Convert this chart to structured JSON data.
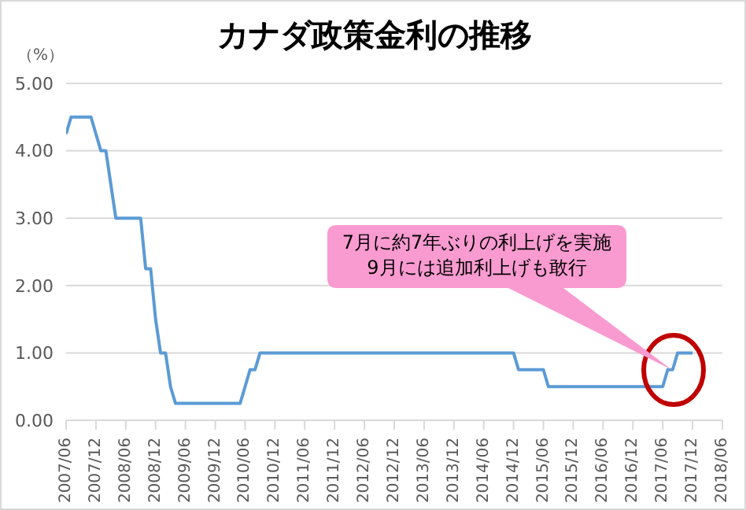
{
  "chart_data": {
    "type": "line",
    "title": "カナダ政策金利の推移",
    "ylabel": "（%）",
    "x": [
      "2007-06",
      "2007-07",
      "2007-08",
      "2007-09",
      "2007-10",
      "2007-11",
      "2007-12",
      "2008-01",
      "2008-02",
      "2008-03",
      "2008-04",
      "2008-05",
      "2008-06",
      "2008-07",
      "2008-08",
      "2008-09",
      "2008-10",
      "2008-11",
      "2008-12",
      "2009-01",
      "2009-02",
      "2009-03",
      "2009-04",
      "2009-05",
      "2009-06",
      "2009-07",
      "2009-08",
      "2009-09",
      "2009-10",
      "2009-11",
      "2009-12",
      "2010-01",
      "2010-02",
      "2010-03",
      "2010-04",
      "2010-05",
      "2010-06",
      "2010-07",
      "2010-08",
      "2010-09",
      "2010-10",
      "2010-11",
      "2010-12",
      "2011-01",
      "2011-02",
      "2011-03",
      "2011-04",
      "2011-05",
      "2011-06",
      "2011-07",
      "2011-08",
      "2011-09",
      "2011-10",
      "2011-11",
      "2011-12",
      "2012-01",
      "2012-02",
      "2012-03",
      "2012-04",
      "2012-05",
      "2012-06",
      "2012-07",
      "2012-08",
      "2012-09",
      "2012-10",
      "2012-11",
      "2012-12",
      "2013-01",
      "2013-02",
      "2013-03",
      "2013-04",
      "2013-05",
      "2013-06",
      "2013-07",
      "2013-08",
      "2013-09",
      "2013-10",
      "2013-11",
      "2013-12",
      "2014-01",
      "2014-02",
      "2014-03",
      "2014-04",
      "2014-05",
      "2014-06",
      "2014-07",
      "2014-08",
      "2014-09",
      "2014-10",
      "2014-11",
      "2014-12",
      "2015-01",
      "2015-02",
      "2015-03",
      "2015-04",
      "2015-05",
      "2015-06",
      "2015-07",
      "2015-08",
      "2015-09",
      "2015-10",
      "2015-11",
      "2015-12",
      "2016-01",
      "2016-02",
      "2016-03",
      "2016-04",
      "2016-05",
      "2016-06",
      "2016-07",
      "2016-08",
      "2016-09",
      "2016-10",
      "2016-11",
      "2016-12",
      "2017-01",
      "2017-02",
      "2017-03",
      "2017-04",
      "2017-05",
      "2017-06",
      "2017-07",
      "2017-08",
      "2017-09",
      "2017-10",
      "2017-11",
      "2017-12"
    ],
    "series": [
      {
        "color": "#5b9bd5",
        "values": [
          4.25,
          4.5,
          4.5,
          4.5,
          4.5,
          4.5,
          4.25,
          4.0,
          4.0,
          3.5,
          3.0,
          3.0,
          3.0,
          3.0,
          3.0,
          3.0,
          2.25,
          2.25,
          1.5,
          1.0,
          1.0,
          0.5,
          0.25,
          0.25,
          0.25,
          0.25,
          0.25,
          0.25,
          0.25,
          0.25,
          0.25,
          0.25,
          0.25,
          0.25,
          0.25,
          0.25,
          0.5,
          0.75,
          0.75,
          1.0,
          1.0,
          1.0,
          1.0,
          1.0,
          1.0,
          1.0,
          1.0,
          1.0,
          1.0,
          1.0,
          1.0,
          1.0,
          1.0,
          1.0,
          1.0,
          1.0,
          1.0,
          1.0,
          1.0,
          1.0,
          1.0,
          1.0,
          1.0,
          1.0,
          1.0,
          1.0,
          1.0,
          1.0,
          1.0,
          1.0,
          1.0,
          1.0,
          1.0,
          1.0,
          1.0,
          1.0,
          1.0,
          1.0,
          1.0,
          1.0,
          1.0,
          1.0,
          1.0,
          1.0,
          1.0,
          1.0,
          1.0,
          1.0,
          1.0,
          1.0,
          1.0,
          0.75,
          0.75,
          0.75,
          0.75,
          0.75,
          0.75,
          0.5,
          0.5,
          0.5,
          0.5,
          0.5,
          0.5,
          0.5,
          0.5,
          0.5,
          0.5,
          0.5,
          0.5,
          0.5,
          0.5,
          0.5,
          0.5,
          0.5,
          0.5,
          0.5,
          0.5,
          0.5,
          0.5,
          0.5,
          0.5,
          0.75,
          0.75,
          1.0,
          1.0,
          1.0,
          1.0
        ]
      }
    ],
    "xlim": [
      "2007-06",
      "2018-06"
    ],
    "xticks": [
      {
        "value": "2007-06",
        "label": "2007/06"
      },
      {
        "value": "2007-12",
        "label": "2007/12"
      },
      {
        "value": "2008-06",
        "label": "2008/06"
      },
      {
        "value": "2008-12",
        "label": "2008/12"
      },
      {
        "value": "2009-06",
        "label": "2009/06"
      },
      {
        "value": "2009-12",
        "label": "2009/12"
      },
      {
        "value": "2010-06",
        "label": "2010/06"
      },
      {
        "value": "2010-12",
        "label": "2010/12"
      },
      {
        "value": "2011-06",
        "label": "2011/06"
      },
      {
        "value": "2011-12",
        "label": "2011/12"
      },
      {
        "value": "2012-06",
        "label": "2012/06"
      },
      {
        "value": "2012-12",
        "label": "2012/12"
      },
      {
        "value": "2013-06",
        "label": "2013/06"
      },
      {
        "value": "2013-12",
        "label": "2013/12"
      },
      {
        "value": "2014-06",
        "label": "2014/06"
      },
      {
        "value": "2014-12",
        "label": "2014/12"
      },
      {
        "value": "2015-06",
        "label": "2015/06"
      },
      {
        "value": "2015-12",
        "label": "2015/12"
      },
      {
        "value": "2016-06",
        "label": "2016/06"
      },
      {
        "value": "2016-12",
        "label": "2016/12"
      },
      {
        "value": "2017-06",
        "label": "2017/06"
      },
      {
        "value": "2017-12",
        "label": "2017/12"
      },
      {
        "value": "2018-06",
        "label": "2018/06"
      }
    ],
    "ylim": [
      0,
      5
    ],
    "yticks": [
      {
        "value": 0,
        "label": "0.00"
      },
      {
        "value": 1,
        "label": "1.00"
      },
      {
        "value": 2,
        "label": "2.00"
      },
      {
        "value": 3,
        "label": "3.00"
      },
      {
        "value": 4,
        "label": "4.00"
      },
      {
        "value": 5,
        "label": "5.00"
      }
    ],
    "grid": "y",
    "marker": "none",
    "line_style": "solid",
    "legend": false,
    "annotations": [
      "7月に約7年ぶりの利上げを実施\n9月には追加利上げも敢行"
    ]
  }
}
